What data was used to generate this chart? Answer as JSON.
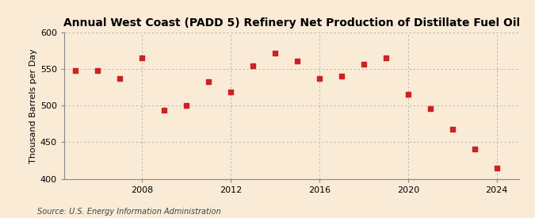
{
  "title": "Annual West Coast (PADD 5) Refinery Net Production of Distillate Fuel Oil",
  "ylabel": "Thousand Barrels per Day",
  "source": "Source: U.S. Energy Information Administration",
  "background_color": "#faebd7",
  "plot_background_color": "#faebd7",
  "marker_color": "#cc2222",
  "years": [
    2005,
    2006,
    2007,
    2008,
    2009,
    2010,
    2011,
    2012,
    2013,
    2014,
    2015,
    2016,
    2017,
    2018,
    2019,
    2020,
    2021,
    2022,
    2023,
    2024
  ],
  "values": [
    548,
    548,
    537,
    565,
    494,
    500,
    533,
    519,
    555,
    572,
    561,
    537,
    541,
    557,
    565,
    516,
    496,
    468,
    441,
    415
  ],
  "ylim": [
    400,
    600
  ],
  "yticks": [
    400,
    450,
    500,
    550,
    600
  ],
  "xlim": [
    2004.5,
    2025
  ],
  "xticks": [
    2008,
    2012,
    2016,
    2020,
    2024
  ],
  "grid_color": "#b0b0b0",
  "title_fontsize": 10,
  "label_fontsize": 8,
  "tick_fontsize": 8,
  "source_fontsize": 7,
  "marker_size": 5
}
